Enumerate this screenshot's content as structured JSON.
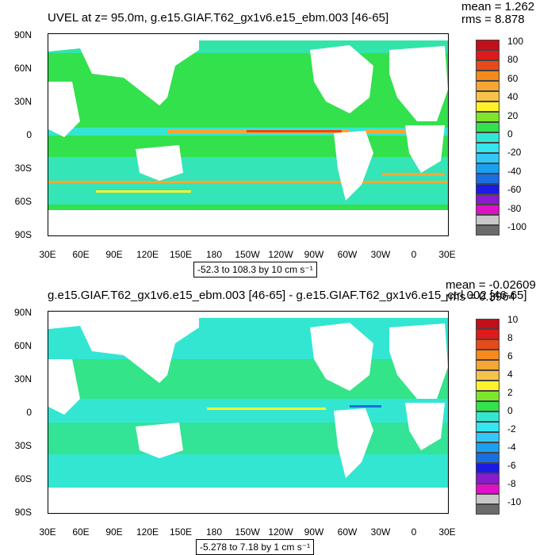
{
  "colors": {
    "land": "#ffffff",
    "background_ocean": "#33e14d",
    "ocean_light": "#4ce06a",
    "cyan": "#33e6d2",
    "orange": "#f6a733",
    "red": "#e64a1a",
    "dark_red": "#c0101a",
    "blue": "#1a6fe0",
    "yellow": "#fff22a"
  },
  "palette": [
    "#6b6b6b",
    "#c8c8c8",
    "#e010c8",
    "#8a1ad0",
    "#1a1ae6",
    "#1a6fe0",
    "#1aa0f0",
    "#33c8f8",
    "#33e6f0",
    "#33e6d2",
    "#33e14d",
    "#7ee62a",
    "#fff22a",
    "#f6c24a",
    "#f6a733",
    "#f68a1a",
    "#e64a1a",
    "#e01a1a",
    "#c0101a"
  ],
  "lat_labels": [
    "90N",
    "60N",
    "30N",
    "0",
    "30S",
    "60S",
    "90S"
  ],
  "lon_labels": [
    "30E",
    "60E",
    "90E",
    "120E",
    "150E",
    "180",
    "150W",
    "120W",
    "90W",
    "60W",
    "30W",
    "0",
    "30E"
  ],
  "top_panel": {
    "title": "UVEL at z=  95.0m, g.e15.GIAF.T62_gx1v6.e15_ebm.003 [46-65]",
    "mean": "mean = 1.262",
    "rms": "rms = 8.878",
    "range": "-52.3 to 108.3 by 10 cm s⁻¹",
    "colorbar_labels": [
      "100",
      "80",
      "60",
      "40",
      "20",
      "0",
      "-20",
      "-40",
      "-60",
      "-80",
      "-100"
    ]
  },
  "bottom_panel": {
    "title": "g.e15.GIAF.T62_gx1v6.e15_ebm.003 [46-65] - g.e15.GIAF.T62_gx1v6.e15_ctrl.002 [46-65]",
    "mean": "mean = -0.02609",
    "rms": "rms = 0.3964",
    "range": "-5.278 to 7.18 by 1 cm s⁻¹",
    "colorbar_labels": [
      "10",
      "8",
      "6",
      "4",
      "2",
      "0",
      "-2",
      "-4",
      "-6",
      "-8",
      "-10"
    ]
  }
}
